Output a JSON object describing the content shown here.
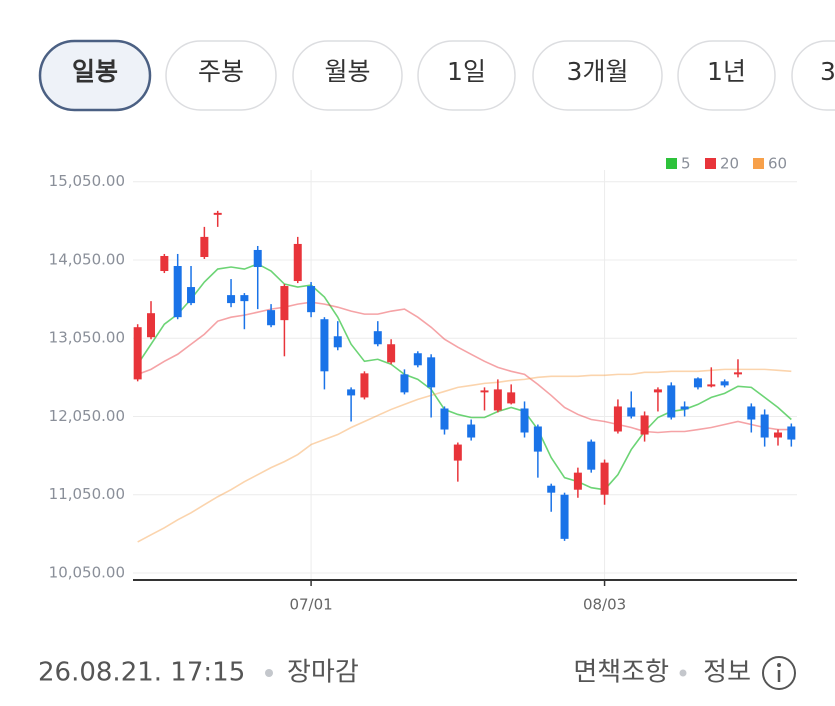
{
  "tabs": [
    "일봉",
    "주봉",
    "월봉",
    "1일",
    "3개월",
    "1년",
    "3"
  ],
  "chart_data": {
    "type": "candlestick",
    "categories": [
      null,
      null,
      null,
      null,
      null,
      null,
      null,
      null,
      null,
      null,
      null,
      null,
      null,
      "07/01",
      null,
      null,
      null,
      null,
      null,
      null,
      null,
      null,
      null,
      null,
      null,
      null,
      null,
      null,
      null,
      null,
      null,
      null,
      null,
      null,
      null,
      "08/03",
      null,
      null,
      null,
      null,
      null,
      null,
      null,
      null,
      null,
      null,
      null,
      null,
      null,
      null
    ],
    "open": [
      12524,
      13063,
      13909,
      13973,
      13704,
      14088,
      14627,
      13601,
      13601,
      14178,
      13409,
      13281,
      13781,
      13717,
      13293,
      13075,
      12396,
      12293,
      13140,
      12742,
      12588,
      12858,
      12806,
      12152,
      11486,
      11947,
      12358,
      12127,
      12217,
      12152,
      11922,
      11165,
      11050,
      11114,
      11729,
      11050,
      11858,
      12165,
      11819,
      12358,
      12447,
      12178,
      12537,
      12434,
      12499,
      12588,
      12178,
      12075,
      11781,
      11922
    ],
    "high": [
      13229,
      13524,
      14127,
      14127,
      13973,
      14473,
      14678,
      13806,
      13627,
      14229,
      13486,
      13742,
      14345,
      13768,
      13319,
      13268,
      12422,
      12627,
      13268,
      13037,
      12652,
      12883,
      12845,
      12178,
      11717,
      12011,
      12422,
      12524,
      12460,
      12242,
      11947,
      11191,
      11076,
      11396,
      11755,
      11499,
      12268,
      12370,
      12114,
      12422,
      12486,
      12242,
      12550,
      12678,
      12524,
      12781,
      12217,
      12140,
      11883,
      11960
    ],
    "low": [
      12499,
      13037,
      13883,
      13293,
      13473,
      14063,
      14473,
      13447,
      13165,
      13422,
      13191,
      12819,
      13755,
      13319,
      12396,
      12896,
      11986,
      12268,
      12947,
      12717,
      12332,
      12678,
      12037,
      11819,
      11217,
      11742,
      12127,
      12101,
      12204,
      11781,
      11268,
      10832,
      10460,
      11011,
      11332,
      10922,
      11832,
      12024,
      11729,
      12114,
      12011,
      12050,
      12396,
      12422,
      12422,
      12550,
      11845,
      11665,
      11678,
      11665
    ],
    "close": [
      13191,
      13370,
      14101,
      13319,
      13499,
      14345,
      14652,
      13499,
      13524,
      13960,
      13216,
      13717,
      14255,
      13383,
      12627,
      12934,
      12319,
      12601,
      12973,
      12973,
      12358,
      12704,
      12422,
      11883,
      11691,
      11781,
      12383,
      12396,
      12358,
      11845,
      11601,
      11076,
      10486,
      11332,
      11370,
      11460,
      12178,
      12050,
      12063,
      12396,
      12037,
      12140,
      12422,
      12460,
      12447,
      12614,
      12011,
      11781,
      11845,
      11755
    ],
    "up_color": "#e8343a",
    "down_color": "#1a73e8",
    "series": [
      {
        "name": "5",
        "color": "#2dc23b",
        "values": [
          12717,
          12973,
          13229,
          13358,
          13550,
          13768,
          13934,
          13960,
          13934,
          13999,
          13909,
          13742,
          13704,
          13729,
          13576,
          13319,
          12973,
          12755,
          12781,
          12717,
          12588,
          12524,
          12396,
          12140,
          12076,
          12037,
          12037,
          12114,
          12165,
          12114,
          11883,
          11524,
          11268,
          11217,
          11140,
          11114,
          11306,
          11627,
          11858,
          12037,
          12114,
          12140,
          12204,
          12294,
          12345,
          12435,
          12422,
          12294,
          12165,
          12011
        ]
      },
      {
        "name": "20",
        "color": "#e8343a",
        "values": [
          12588,
          12652,
          12755,
          12845,
          12973,
          13101,
          13268,
          13319,
          13345,
          13383,
          13422,
          13447,
          13486,
          13511,
          13486,
          13447,
          13396,
          13358,
          13358,
          13396,
          13422,
          13319,
          13191,
          13037,
          12935,
          12845,
          12755,
          12678,
          12627,
          12588,
          12460,
          12319,
          12165,
          12076,
          12011,
          11986,
          11947,
          11909,
          11858,
          11845,
          11858,
          11858,
          11883,
          11909,
          11947,
          11986,
          11947,
          11909,
          11883,
          11883
        ]
      },
      {
        "name": "60",
        "color": "#f7a04a",
        "values": [
          10447,
          10537,
          10627,
          10729,
          10819,
          10922,
          11024,
          11114,
          11217,
          11306,
          11396,
          11473,
          11563,
          11691,
          11755,
          11819,
          11909,
          11986,
          12063,
          12140,
          12204,
          12268,
          12319,
          12370,
          12422,
          12447,
          12473,
          12486,
          12511,
          12524,
          12550,
          12563,
          12563,
          12563,
          12576,
          12576,
          12588,
          12588,
          12614,
          12614,
          12627,
          12627,
          12627,
          12640,
          12652,
          12652,
          12652,
          12652,
          12640,
          12627
        ]
      }
    ],
    "ylim": [
      9960,
      15200
    ],
    "yticks": [
      {
        "value": 10050,
        "label": "10,050.00"
      },
      {
        "value": 11050,
        "label": "11,050.00"
      },
      {
        "value": 12050,
        "label": "12,050.00"
      },
      {
        "value": 13050,
        "label": "13,050.00"
      },
      {
        "value": 14050,
        "label": "14,050.00"
      },
      {
        "value": 15050,
        "label": "15,050.00"
      }
    ],
    "grid": true,
    "legend": "top-right"
  },
  "footer": {
    "timestamp": "26.08.21. 17:15",
    "status": "장마감",
    "disclaimer": "면책조항",
    "info": "정보"
  }
}
